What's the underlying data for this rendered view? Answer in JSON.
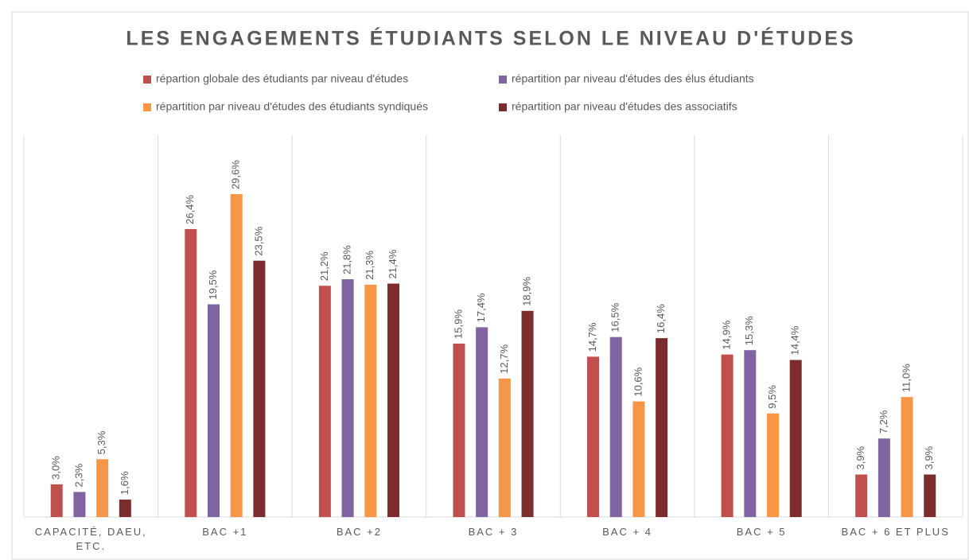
{
  "chart_data": {
    "type": "bar",
    "title": "LES ENGAGEMENTS ÉTUDIANTS SELON LE NIVEAU D'ÉTUDES",
    "categories": [
      "CAPACITÉ, DAEU, ETC.",
      "BAC +1",
      "BAC +2",
      "BAC + 3",
      "BAC + 4",
      "BAC + 5",
      "BAC + 6 ET PLUS"
    ],
    "series": [
      {
        "name": "répartion globale des étudiants par niveau d'études",
        "color": "#c0504d",
        "values": [
          3.0,
          26.4,
          21.2,
          15.9,
          14.7,
          14.9,
          3.9
        ],
        "value_labels": [
          "3,0%",
          "26,4%",
          "21,2%",
          "15,9%",
          "14,7%",
          "14,9%",
          "3,9%"
        ]
      },
      {
        "name": "répartition par niveau d'études des élus étudiants",
        "color": "#8064a2",
        "values": [
          2.3,
          19.5,
          21.8,
          17.4,
          16.5,
          15.3,
          7.2
        ],
        "value_labels": [
          "2,3%",
          "19,5%",
          "21,8%",
          "17,4%",
          "16,5%",
          "15,3%",
          "7,2%"
        ]
      },
      {
        "name": "répartition par niveau d'études des étudiants syndiqués",
        "color": "#f79646",
        "values": [
          5.3,
          29.6,
          21.3,
          12.7,
          10.6,
          9.5,
          11.0
        ],
        "value_labels": [
          "5,3%",
          "29,6%",
          "21,3%",
          "12,7%",
          "10,6%",
          "9,5%",
          "11,0%"
        ]
      },
      {
        "name": "répartition par niveau d'études des associatifs",
        "color": "#7b2c2c",
        "values": [
          1.6,
          23.5,
          21.4,
          18.9,
          16.4,
          14.4,
          3.9
        ],
        "value_labels": [
          "1,6%",
          "23,5%",
          "21,4%",
          "18,9%",
          "16,4%",
          "14,4%",
          "3,9%"
        ]
      }
    ],
    "ylim": [
      0,
      35
    ]
  }
}
